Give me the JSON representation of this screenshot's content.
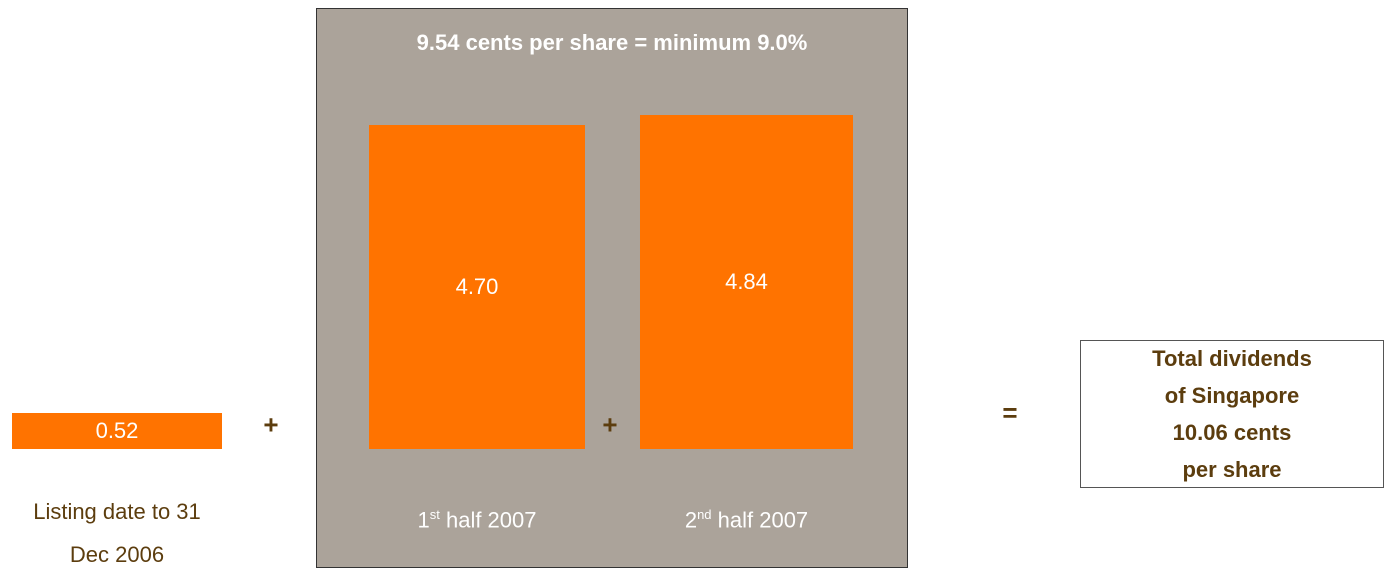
{
  "chart_data": {
    "type": "bar",
    "title": "9.54 cents per share = minimum 9.0%",
    "categories": [
      "Listing date to 31 Dec 2006",
      "1st half 2007",
      "2nd half 2007"
    ],
    "values": [
      0.52,
      4.7,
      4.84
    ],
    "value_labels": [
      "0.52",
      "4.70",
      "4.84"
    ],
    "color": "#ff7300",
    "panel_color": "#aba39a",
    "text_color": "#5c3d0e",
    "operators": [
      "+",
      "+",
      "="
    ],
    "total": [
      "Total dividends",
      "of Singapore",
      "10.06 cents",
      "per share"
    ]
  }
}
